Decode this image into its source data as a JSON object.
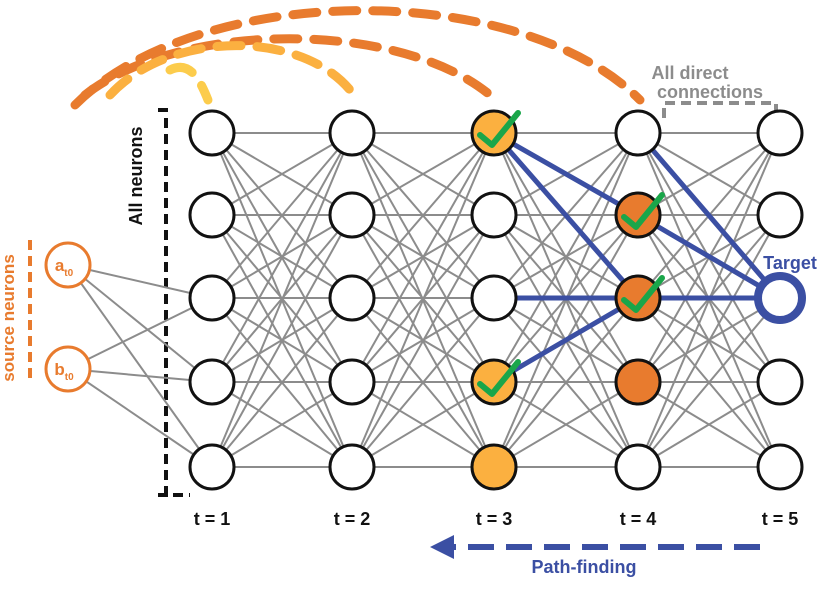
{
  "colors": {
    "edge": "#8c8c8c",
    "node_stroke": "#111111",
    "light_orange": "#fbb040",
    "dark_orange": "#e87b2e",
    "blue": "#3b4fa3",
    "green": "#1aa64a",
    "gray_text": "#8c8c8c",
    "yellow_arc": "#fccc4c"
  },
  "diagram": {
    "layers": [
      {
        "label": "t = 1"
      },
      {
        "label": "t = 2"
      },
      {
        "label": "t = 3"
      },
      {
        "label": "t = 4"
      },
      {
        "label": "t = 5"
      }
    ],
    "nodes_per_layer": 5,
    "node_fill": [
      [
        "none",
        "none",
        "none",
        "none",
        "none"
      ],
      [
        "none",
        "none",
        "none",
        "none",
        "none"
      ],
      [
        "light_orange",
        "none",
        "none",
        "light_orange",
        "light_orange"
      ],
      [
        "none",
        "dark_orange",
        "dark_orange",
        "dark_orange",
        "none"
      ],
      [
        "none",
        "none",
        "none",
        "none",
        "none"
      ]
    ],
    "checked_nodes": [
      [
        2,
        0
      ],
      [
        2,
        3
      ],
      [
        3,
        1
      ],
      [
        3,
        2
      ]
    ],
    "target_node": [
      4,
      2
    ],
    "source_nodes": [
      {
        "letter": "a",
        "subscript": "t0"
      },
      {
        "letter": "b",
        "subscript": "t0"
      }
    ],
    "path_edges": [
      [
        [
          2,
          0
        ],
        [
          3,
          1
        ]
      ],
      [
        [
          2,
          0
        ],
        [
          3,
          2
        ]
      ],
      [
        [
          2,
          2
        ],
        [
          3,
          2
        ]
      ],
      [
        [
          2,
          3
        ],
        [
          3,
          2
        ]
      ],
      [
        [
          3,
          0
        ],
        [
          4,
          2
        ]
      ],
      [
        [
          3,
          1
        ],
        [
          4,
          2
        ]
      ],
      [
        [
          3,
          2
        ],
        [
          4,
          2
        ]
      ]
    ],
    "labels": {
      "source_neurons": "source neurons",
      "all_neurons": "All neurons",
      "all_direct_line1": "All direct",
      "all_direct_line2": "connections",
      "target": "Target",
      "path_finding": "Path-finding"
    }
  }
}
